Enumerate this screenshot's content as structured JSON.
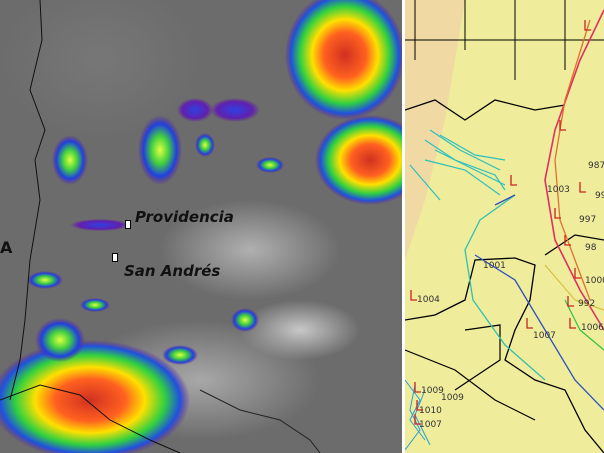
{
  "satellite_panel": {
    "labels": {
      "providencia": "Providencia",
      "san_andres": "San Andrés",
      "edge_fragment": "A"
    }
  },
  "track_panel": {
    "pressure_labels": [
      "987",
      "99",
      "1003",
      "997",
      "98",
      "1000",
      "992",
      "1006",
      "1001",
      "1004",
      "1007",
      "1009",
      "1010",
      "1007",
      "1009"
    ],
    "colors": {
      "land_background": "#efec9c",
      "warm_region": "#f2d2a8",
      "marker": "#cc2222"
    }
  }
}
